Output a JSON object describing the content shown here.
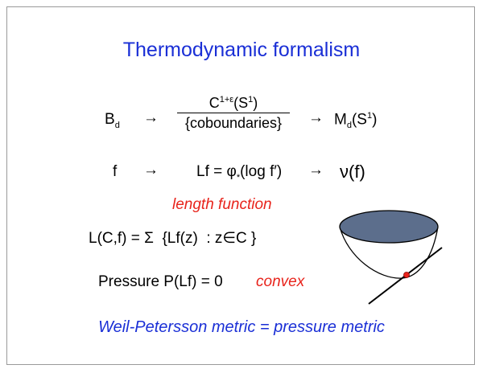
{
  "title": "Thermodynamic formalism",
  "line1": {
    "left": [
      "B",
      "d"
    ],
    "arrow1": "→",
    "numerator": [
      "C",
      "1+ε",
      "(S",
      "1",
      ")"
    ],
    "denominator": "{coboundaries}",
    "arrow2": "→",
    "right": [
      "M",
      "d",
      "(S",
      "1",
      ")"
    ]
  },
  "line2": {
    "left": "f",
    "arrow1": "→",
    "middle": [
      "Lf = φ",
      "*",
      "(log f′)"
    ],
    "arrow2": "→",
    "right": "ν(f)"
  },
  "annotation": "length function",
  "line3": "L(C,f) = Σ  {Lf(z)  : z∈C }",
  "line4": {
    "text": "Pressure P(Lf) = 0",
    "note": "convex"
  },
  "footer": "Weil-Petersson metric = pressure metric"
}
